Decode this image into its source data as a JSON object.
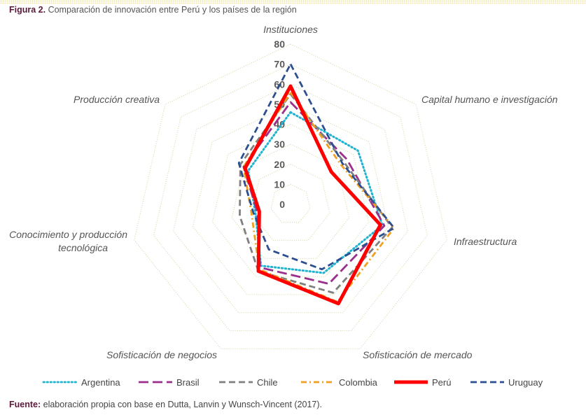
{
  "title": {
    "label": "Figura 2.",
    "text": "Comparación de innovación entre Perú y los países de la región"
  },
  "source": {
    "label": "Fuente:",
    "text": "elaboración propia con base en Dutta, Lanvin y Wunsch-Vincent (2017)."
  },
  "chart_data": {
    "type": "radar",
    "categories": [
      "Instituciones",
      "Capital humano e investigación",
      "Infraestructura",
      "Sofisticación de mercado",
      "Sofisticación de negocios",
      "Conocimiento y producción tecnológica",
      "Producción creativa"
    ],
    "rlim": [
      0,
      80
    ],
    "ticks": [
      0,
      10,
      20,
      30,
      40,
      50,
      60,
      70,
      80
    ],
    "grid": true,
    "legend": "bottom",
    "series": [
      {
        "name": "Argentina",
        "color": "#1fb3d0",
        "style": "dotted",
        "values": [
          46,
          43,
          47,
          38,
          34,
          18,
          27
        ]
      },
      {
        "name": "Brasil",
        "color": "#9b2f8c",
        "style": "long-dash",
        "values": [
          51,
          36,
          48,
          44,
          35,
          17,
          30
        ]
      },
      {
        "name": "Chile",
        "color": "#808080",
        "style": "dash",
        "values": [
          55,
          34,
          52,
          49,
          37,
          26,
          32
        ]
      },
      {
        "name": "Colombia",
        "color": "#f0a020",
        "style": "dash-dot",
        "values": [
          56,
          32,
          53,
          54,
          36,
          20,
          30
        ]
      },
      {
        "name": "Perú",
        "color": "#ff0000",
        "style": "solid-thick",
        "values": [
          59,
          26,
          46,
          55,
          37,
          16,
          29
        ]
      },
      {
        "name": "Uruguay",
        "color": "#2e4f8f",
        "style": "dash",
        "values": [
          70,
          33,
          53,
          36,
          25,
          19,
          33
        ]
      }
    ]
  }
}
